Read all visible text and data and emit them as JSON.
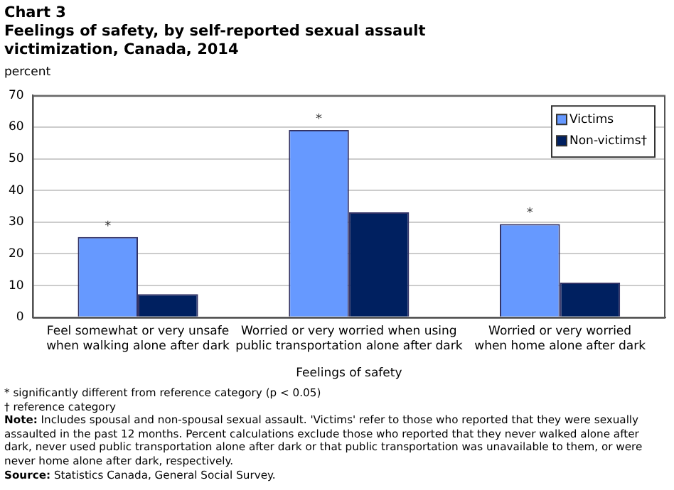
{
  "chart_data": {
    "type": "bar",
    "title": "Chart 3\nFeelings of safety, by self-reported sexual assault victimization, Canada, 2014",
    "ylabel": "percent",
    "xlabel": "Feelings of safety",
    "categories": [
      "Feel somewhat or very unsafe\nwhen walking alone after dark",
      "Worried or very worried when using\npublic transportation alone after dark",
      "Worried or very worried\nwhen home alone after dark"
    ],
    "series": [
      {
        "name": "Victims",
        "color": "#6699ff",
        "values": [
          25.3,
          59.1,
          29.4
        ]
      },
      {
        "name": "Non-victims†",
        "color": "#002060",
        "values": [
          7.3,
          33.1,
          10.9
        ]
      }
    ],
    "ylim": [
      0,
      70
    ],
    "yticks": [
      0,
      10,
      20,
      30,
      40,
      50,
      60,
      70
    ],
    "grid": "y",
    "legend": "top right",
    "annotations": [
      {
        "text": "*",
        "x": "Feel somewhat or very unsafe\nwhen walking alone after dark",
        "y": 25.3
      },
      {
        "text": "*",
        "x": "Worried or very worried when using\npublic transportation alone after dark",
        "y": 59.1
      },
      {
        "text": "*",
        "x": "Worried or very worried\nwhen home alone after dark",
        "y": 29.4
      },
      "* significantly different from reference category (p < 0.05)",
      "† reference category",
      "Note: Includes spousal and non-spousal sexual assault. 'Victims' refer to those who reported that they were sexually assaulted in the past 12 months. Percent calculations exclude those who reported that they never walked alone after dark, never used public transportation alone after dark or that public transportation was unavailable to them, or were never home alone after dark, respectively.",
      "Source: Statistics Canada, General Social Survey."
    ]
  }
}
